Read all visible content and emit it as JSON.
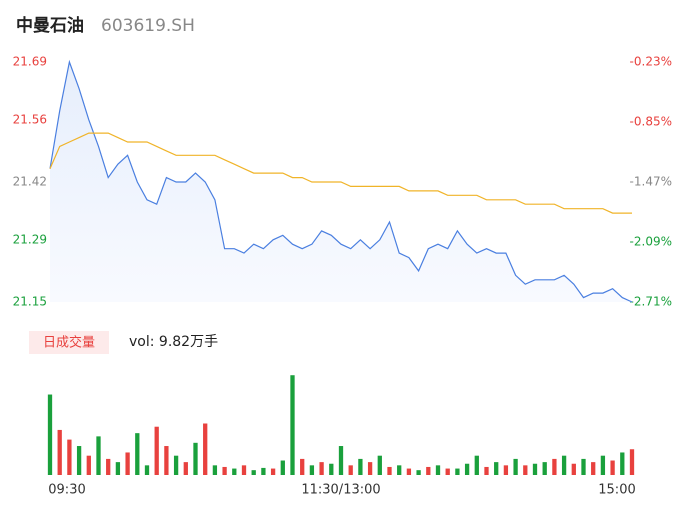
{
  "chart_data": {
    "type": "line",
    "title": "中曼石油",
    "subtitle": "603619.SH",
    "x": [
      0,
      4,
      8,
      12,
      16,
      20,
      24,
      28,
      32,
      36,
      40,
      44,
      48,
      52,
      56,
      60,
      64,
      68,
      72,
      76,
      80,
      84,
      88,
      92,
      96,
      100,
      104,
      108,
      112,
      116,
      120,
      124,
      128,
      132,
      136,
      140,
      144,
      148,
      152,
      156,
      160,
      164,
      168,
      172,
      176,
      180,
      184,
      188,
      192,
      196,
      200,
      204,
      208,
      212,
      216,
      220,
      224,
      228,
      232,
      236,
      240
    ],
    "xlim": [
      0,
      240
    ],
    "xticks": [
      {
        "value": 0,
        "label": "09:30"
      },
      {
        "value": 120,
        "label": "11:30/13:00"
      },
      {
        "value": 240,
        "label": "15:00"
      }
    ],
    "series": [
      {
        "name": "price",
        "color": "#4a7fe0",
        "values": [
          21.45,
          21.58,
          21.69,
          21.63,
          21.56,
          21.5,
          21.43,
          21.46,
          21.48,
          21.42,
          21.38,
          21.37,
          21.43,
          21.42,
          21.42,
          21.44,
          21.42,
          21.38,
          21.27,
          21.27,
          21.26,
          21.28,
          21.27,
          21.29,
          21.3,
          21.28,
          21.27,
          21.28,
          21.31,
          21.3,
          21.28,
          21.27,
          21.29,
          21.27,
          21.29,
          21.33,
          21.26,
          21.25,
          21.22,
          21.27,
          21.28,
          21.27,
          21.31,
          21.28,
          21.26,
          21.27,
          21.26,
          21.26,
          21.21,
          21.19,
          21.2,
          21.2,
          21.2,
          21.21,
          21.19,
          21.16,
          21.17,
          21.17,
          21.18,
          21.16,
          21.15
        ]
      },
      {
        "name": "avg",
        "color": "#f0b429",
        "values": [
          21.45,
          21.5,
          21.51,
          21.52,
          21.53,
          21.53,
          21.53,
          21.52,
          21.51,
          21.51,
          21.51,
          21.5,
          21.49,
          21.48,
          21.48,
          21.48,
          21.48,
          21.48,
          21.47,
          21.46,
          21.45,
          21.44,
          21.44,
          21.44,
          21.44,
          21.43,
          21.43,
          21.42,
          21.42,
          21.42,
          21.42,
          21.41,
          21.41,
          21.41,
          21.41,
          21.41,
          21.41,
          21.4,
          21.4,
          21.4,
          21.4,
          21.39,
          21.39,
          21.39,
          21.39,
          21.38,
          21.38,
          21.38,
          21.38,
          21.37,
          21.37,
          21.37,
          21.37,
          21.36,
          21.36,
          21.36,
          21.36,
          21.36,
          21.35,
          21.35,
          21.35
        ]
      }
    ],
    "ylim": [
      21.15,
      21.69
    ],
    "yticks": [
      21.69,
      21.56,
      21.42,
      21.29,
      21.15
    ],
    "y2lim": [
      -2.71,
      -0.23
    ],
    "y2ticks": [
      {
        "value": -0.23,
        "label": "-0.23%"
      },
      {
        "value": -0.85,
        "label": "-0.85%"
      },
      {
        "value": -1.47,
        "label": "-1.47%"
      },
      {
        "value": -2.09,
        "label": "-2.09%"
      },
      {
        "value": -2.71,
        "label": "-2.71%"
      }
    ],
    "volume_title": "日成交量",
    "volume_label": "vol: 9.82万手",
    "volume": [
      2500,
      1400,
      1100,
      900,
      600,
      1200,
      500,
      400,
      700,
      1300,
      300,
      1500,
      900,
      600,
      400,
      1000,
      1600,
      300,
      250,
      200,
      300,
      150,
      220,
      200,
      450,
      3100,
      500,
      300,
      400,
      350,
      900,
      300,
      500,
      400,
      600,
      250,
      300,
      200,
      150,
      250,
      300,
      200,
      200,
      350,
      600,
      250,
      400,
      300,
      500,
      300,
      350,
      400,
      500,
      600,
      350,
      500,
      400,
      600,
      450,
      700,
      800
    ],
    "volume_colors": [
      "#1aa03c",
      "#e8413e",
      "#e8413e",
      "#1aa03c",
      "#e8413e",
      "#1aa03c",
      "#e8413e",
      "#1aa03c",
      "#e8413e",
      "#1aa03c",
      "#1aa03c",
      "#e8413e",
      "#e8413e",
      "#1aa03c",
      "#e8413e",
      "#1aa03c",
      "#e8413e",
      "#1aa03c",
      "#e8413e",
      "#1aa03c",
      "#e8413e",
      "#1aa03c",
      "#1aa03c",
      "#e8413e",
      "#1aa03c",
      "#1aa03c",
      "#e8413e",
      "#1aa03c",
      "#e8413e",
      "#1aa03c",
      "#1aa03c",
      "#e8413e",
      "#1aa03c",
      "#e8413e",
      "#1aa03c",
      "#e8413e",
      "#1aa03c",
      "#e8413e",
      "#1aa03c",
      "#e8413e",
      "#1aa03c",
      "#e8413e",
      "#1aa03c",
      "#1aa03c",
      "#1aa03c",
      "#e8413e",
      "#1aa03c",
      "#e8413e",
      "#1aa03c",
      "#e8413e",
      "#1aa03c",
      "#1aa03c",
      "#e8413e",
      "#1aa03c",
      "#e8413e",
      "#1aa03c",
      "#e8413e",
      "#1aa03c",
      "#e8413e",
      "#1aa03c",
      "#e8413e"
    ],
    "vlim": [
      0,
      3200
    ]
  }
}
